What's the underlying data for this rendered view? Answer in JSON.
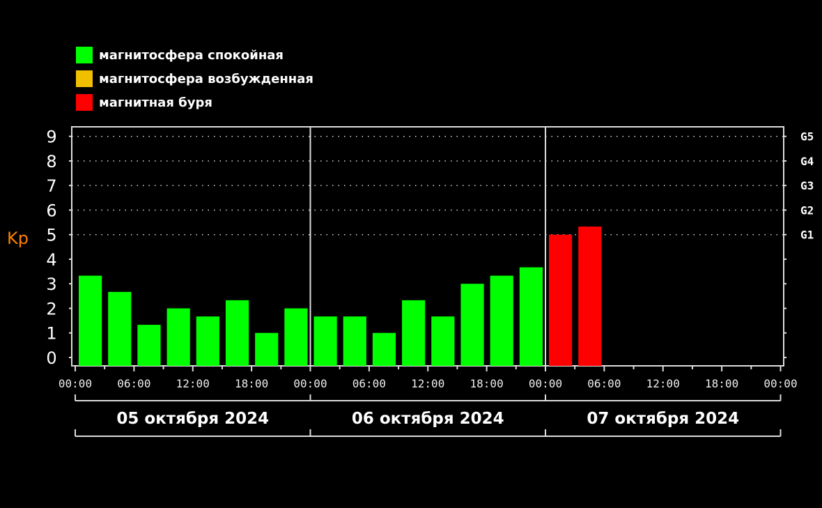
{
  "legend": [
    {
      "label": "магнитосфера спокойная",
      "color": "#00ff00"
    },
    {
      "label": "магнитосфера возбужденная",
      "color": "#f0c000"
    },
    {
      "label": "магнитная буря",
      "color": "#ff0000"
    }
  ],
  "chart_data": {
    "type": "bar",
    "ylabel": "Kp",
    "ylim": [
      0,
      9
    ],
    "yticks": [
      "0",
      "1",
      "2",
      "3",
      "4",
      "5",
      "6",
      "7",
      "8",
      "9"
    ],
    "storm_levels": [
      {
        "label": "G1",
        "kp": 5
      },
      {
        "label": "G2",
        "kp": 6
      },
      {
        "label": "G3",
        "kp": 7
      },
      {
        "label": "G4",
        "kp": 8
      },
      {
        "label": "G5",
        "kp": 9
      }
    ],
    "xticks": [
      "00:00",
      "06:00",
      "12:00",
      "18:00",
      "00:00",
      "06:00",
      "12:00",
      "18:00",
      "00:00",
      "06:00",
      "12:00",
      "18:00",
      "00:00"
    ],
    "days": [
      "05 октября 2024",
      "06 октября 2024",
      "07 октября 2024"
    ],
    "interval_hours": 3,
    "values": [
      3.33,
      2.67,
      1.33,
      2.0,
      1.67,
      2.33,
      1.0,
      2.0,
      1.67,
      1.67,
      1.0,
      2.33,
      1.67,
      3.0,
      3.33,
      3.67,
      5.0,
      5.33
    ],
    "colors": {
      "quiet": "#00ff00",
      "active": "#f0c000",
      "storm": "#ff0000",
      "ylabel": "#ff8000"
    },
    "grid": "dotted at Kp 5-9"
  }
}
